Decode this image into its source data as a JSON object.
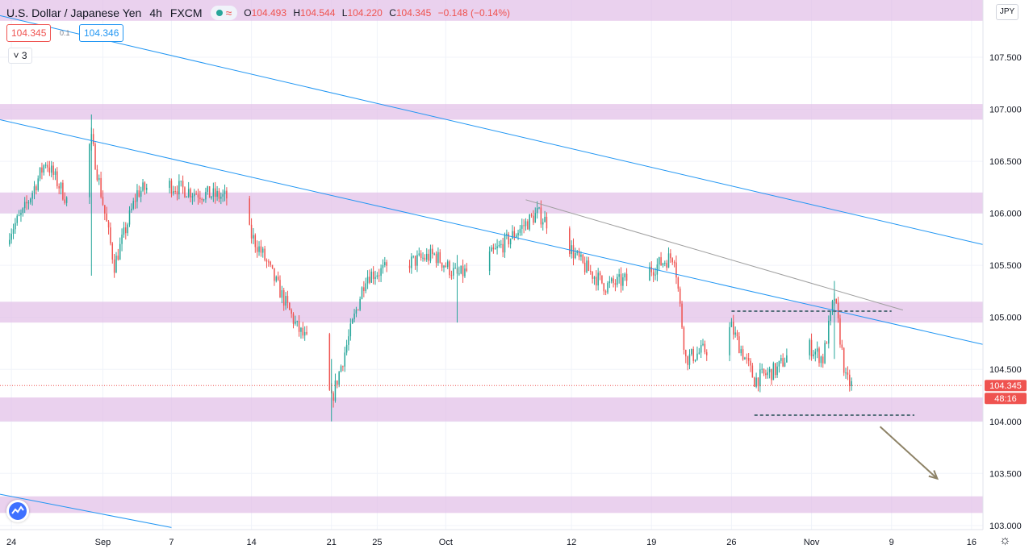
{
  "header": {
    "symbol": "U.S. Dollar / Japanese Yen",
    "timeframe": "4h",
    "source": "FXCM",
    "waves_glyph": "≈",
    "ohlc": {
      "o_label": "O",
      "o": "104.493",
      "h_label": "H",
      "h": "104.544",
      "l_label": "L",
      "l": "104.220",
      "c_label": "C",
      "c": "104.345",
      "change": "−0.148 (−0.14%)"
    },
    "status_icon": "market-status-dot-icon",
    "waves_icon": "waves-icon"
  },
  "trade": {
    "sell": "104.345",
    "spread": "0.1",
    "buy": "104.346"
  },
  "collapse": {
    "label": "3",
    "icon": "chevron-down-icon"
  },
  "price_axis": {
    "currency": "JPY"
  },
  "settings_icon": "gear-icon",
  "logo_icon": "tradingview-logo-icon",
  "colors": {
    "up": "#26a69a",
    "down": "#ef5350",
    "zone": "#e1bee7",
    "trendline": "#2196f3",
    "gray_line": "#9e9e9e",
    "arrow": "#8d8266",
    "dashed": "#546e7a"
  },
  "chart_data": {
    "type": "candlestick",
    "title": "U.S. Dollar / Japanese Yen 4h FXCM",
    "y_axis": {
      "ticks": [
        103.0,
        103.5,
        104.0,
        104.5,
        105.0,
        105.5,
        106.0,
        106.5,
        107.0,
        107.5
      ],
      "tick_labels": [
        "103.000",
        "103.500",
        "104.000",
        "104.500",
        "105.000",
        "105.500",
        "106.000",
        "106.500",
        "107.000",
        "107.500"
      ],
      "ylim": [
        102.96,
        108.05
      ],
      "current_price_label": "104.345",
      "countdown_label": "48:16"
    },
    "x_axis": {
      "xlim": [
        "2020-08-23",
        "2020-11-17"
      ],
      "ticks": [
        {
          "date": "2020-08-24",
          "label": "24"
        },
        {
          "date": "2020-09-01",
          "label": "Sep"
        },
        {
          "date": "2020-09-07",
          "label": "7"
        },
        {
          "date": "2020-09-14",
          "label": "14"
        },
        {
          "date": "2020-09-21",
          "label": "21"
        },
        {
          "date": "2020-09-25",
          "label": "25"
        },
        {
          "date": "2020-10-01",
          "label": "Oct"
        },
        {
          "date": "2020-10-12",
          "label": "12"
        },
        {
          "date": "2020-10-19",
          "label": "19"
        },
        {
          "date": "2020-10-26",
          "label": "26"
        },
        {
          "date": "2020-11-02",
          "label": "Nov"
        },
        {
          "date": "2020-11-09",
          "label": "9"
        },
        {
          "date": "2020-11-16",
          "label": "16"
        }
      ]
    },
    "price_path": [
      [
        "2020-08-23",
        105.7
      ],
      [
        "2020-08-25",
        106.0
      ],
      [
        "2020-08-27",
        106.5
      ],
      [
        "2020-08-29",
        106.1
      ],
      [
        "2020-08-31",
        106.7
      ],
      [
        "2020-09-02",
        105.5
      ],
      [
        "2020-09-04",
        106.2
      ],
      [
        "2020-09-06",
        106.3
      ],
      [
        "2020-09-09",
        106.2
      ],
      [
        "2020-09-12",
        106.15
      ],
      [
        "2020-09-15",
        105.6
      ],
      [
        "2020-09-18",
        104.9
      ],
      [
        "2020-09-20",
        104.6
      ],
      [
        "2020-09-21",
        104.2
      ],
      [
        "2020-09-24",
        105.4
      ],
      [
        "2020-09-27",
        105.5
      ],
      [
        "2020-09-30",
        105.6
      ],
      [
        "2020-10-02",
        105.4
      ],
      [
        "2020-10-04",
        105.5
      ],
      [
        "2020-10-07",
        105.8
      ],
      [
        "2020-10-09",
        106.0
      ],
      [
        "2020-10-11",
        105.8
      ],
      [
        "2020-10-13",
        105.5
      ],
      [
        "2020-10-15",
        105.3
      ],
      [
        "2020-10-18",
        105.4
      ],
      [
        "2020-10-21",
        105.6
      ],
      [
        "2020-10-22",
        104.6
      ],
      [
        "2020-10-24",
        104.7
      ],
      [
        "2020-10-26",
        104.9
      ],
      [
        "2020-10-28",
        104.4
      ],
      [
        "2020-10-30",
        104.5
      ],
      [
        "2020-11-01",
        104.8
      ],
      [
        "2020-11-03",
        104.6
      ],
      [
        "2020-11-04",
        105.2
      ],
      [
        "2020-11-05",
        104.4
      ],
      [
        "2020-11-05T12:00",
        104.35
      ]
    ],
    "highlights": [
      {
        "date": "2020-08-31",
        "low": 105.4,
        "high": 106.95
      },
      {
        "date": "2020-09-21",
        "low": 104.0,
        "high": 104.6
      },
      {
        "date": "2020-10-02",
        "low": 104.95,
        "high": 105.6
      },
      {
        "date": "2020-11-04",
        "low": 104.6,
        "high": 105.35
      }
    ],
    "zones": [
      {
        "low": 107.85,
        "high": 108.05
      },
      {
        "low": 106.9,
        "high": 107.05
      },
      {
        "low": 106.0,
        "high": 106.2
      },
      {
        "low": 104.95,
        "high": 105.15
      },
      {
        "low": 104.0,
        "high": 104.23
      },
      {
        "low": 103.12,
        "high": 103.28
      }
    ],
    "trendlines": [
      {
        "kind": "blue",
        "from": [
          "2020-08-23",
          107.9
        ],
        "to": [
          "2020-11-17",
          105.7
        ]
      },
      {
        "kind": "blue",
        "from": [
          "2020-08-23",
          106.9
        ],
        "to": [
          "2020-11-17",
          104.74
        ]
      },
      {
        "kind": "blue",
        "from": [
          "2020-08-23",
          103.3
        ],
        "to": [
          "2020-09-07",
          102.98
        ]
      },
      {
        "kind": "gray",
        "from": [
          "2020-10-08",
          106.13
        ],
        "to": [
          "2020-11-10",
          105.07
        ]
      }
    ],
    "dashed_levels": [
      {
        "price": 105.06,
        "from": "2020-10-26",
        "to": "2020-11-09"
      },
      {
        "price": 104.06,
        "from": "2020-10-28",
        "to": "2020-11-11"
      }
    ],
    "arrow": {
      "from": [
        "2020-11-08",
        103.95
      ],
      "to": [
        "2020-11-13",
        103.45
      ]
    }
  }
}
